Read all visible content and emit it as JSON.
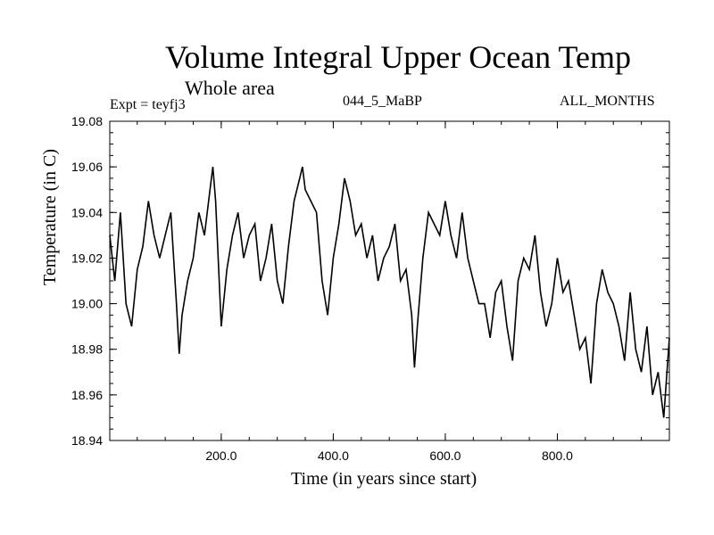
{
  "chart_data": {
    "type": "line",
    "title": "Volume Integral Upper Ocean Temp",
    "subtitle": "Whole area",
    "experiment": "Expt = teyfj3",
    "run_name": "044_5_MaBP",
    "months": "ALL_MONTHS",
    "xlabel": "Time (in years since start)",
    "ylabel": "Temperature (in C)",
    "xlim": [
      1,
      1000
    ],
    "ylim": [
      18.94,
      19.08
    ],
    "x_ticks": [
      200,
      400,
      600,
      800
    ],
    "x_tick_labels": [
      "200.0",
      "400.0",
      "600.0",
      "800.0"
    ],
    "y_ticks": [
      18.94,
      18.96,
      18.98,
      19.0,
      19.02,
      19.04,
      19.06,
      19.08
    ],
    "y_tick_labels": [
      "18.94",
      "18.96",
      "18.98",
      "19.00",
      "19.02",
      "19.04",
      "19.06",
      "19.08"
    ],
    "series": [
      {
        "name": "Volume Integral Upper Ocean Temp",
        "x": [
          1,
          10,
          20,
          30,
          40,
          50,
          60,
          70,
          80,
          90,
          100,
          110,
          120,
          125,
          130,
          140,
          150,
          160,
          170,
          180,
          185,
          190,
          200,
          210,
          220,
          230,
          240,
          250,
          260,
          270,
          280,
          290,
          300,
          310,
          320,
          330,
          340,
          345,
          350,
          360,
          370,
          380,
          390,
          400,
          410,
          420,
          430,
          440,
          450,
          460,
          470,
          480,
          490,
          500,
          510,
          520,
          530,
          540,
          545,
          550,
          560,
          570,
          580,
          590,
          600,
          610,
          620,
          630,
          640,
          650,
          660,
          670,
          680,
          690,
          700,
          710,
          720,
          730,
          740,
          750,
          760,
          770,
          780,
          790,
          800,
          810,
          820,
          830,
          840,
          850,
          860,
          870,
          880,
          890,
          900,
          910,
          920,
          930,
          940,
          950,
          960,
          970,
          980,
          990,
          1000
        ],
        "values": [
          19.03,
          19.01,
          19.04,
          19.0,
          18.99,
          19.015,
          19.025,
          19.045,
          19.03,
          19.02,
          19.03,
          19.04,
          19.0,
          18.978,
          18.995,
          19.01,
          19.02,
          19.04,
          19.03,
          19.05,
          19.06,
          19.045,
          18.99,
          19.015,
          19.03,
          19.04,
          19.02,
          19.03,
          19.035,
          19.01,
          19.02,
          19.035,
          19.01,
          19.0,
          19.025,
          19.045,
          19.055,
          19.06,
          19.05,
          19.045,
          19.04,
          19.01,
          18.995,
          19.02,
          19.035,
          19.055,
          19.045,
          19.03,
          19.035,
          19.02,
          19.03,
          19.01,
          19.02,
          19.025,
          19.035,
          19.01,
          19.015,
          18.995,
          18.972,
          18.99,
          19.02,
          19.04,
          19.035,
          19.03,
          19.045,
          19.03,
          19.02,
          19.04,
          19.02,
          19.01,
          19.0,
          19.0,
          18.985,
          19.005,
          19.01,
          18.99,
          18.975,
          19.01,
          19.02,
          19.015,
          19.03,
          19.005,
          18.99,
          19.0,
          19.02,
          19.005,
          19.01,
          18.995,
          18.98,
          18.985,
          18.965,
          19.0,
          19.015,
          19.005,
          19.0,
          18.99,
          18.975,
          19.005,
          18.98,
          18.97,
          18.99,
          18.96,
          18.97,
          18.95,
          18.985
        ]
      }
    ]
  }
}
